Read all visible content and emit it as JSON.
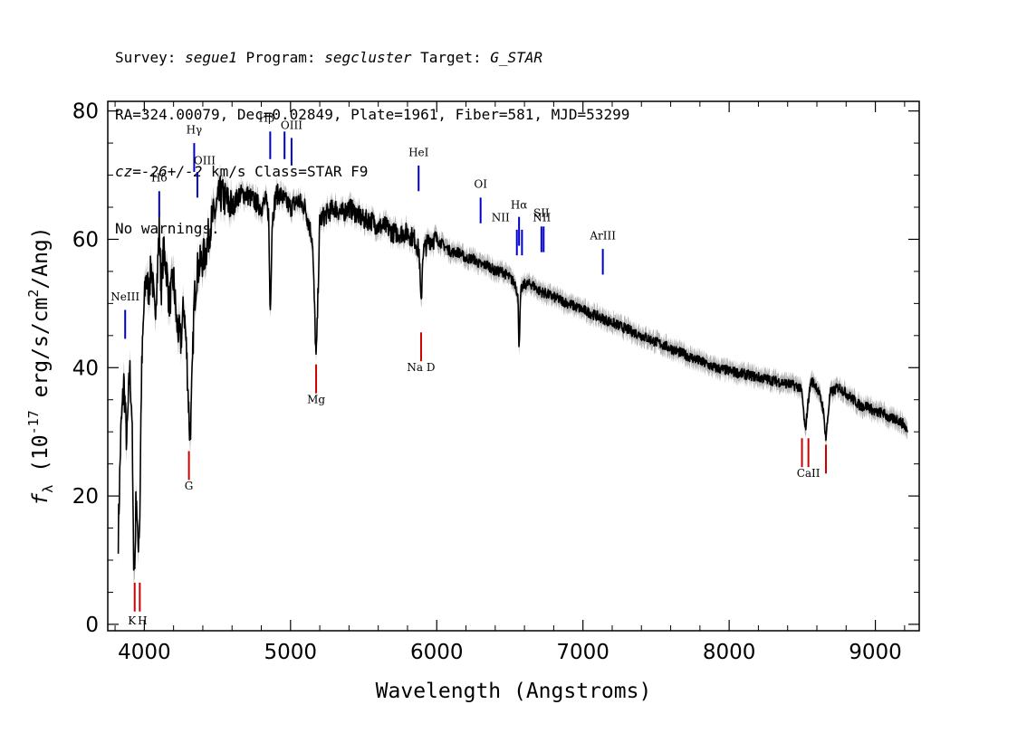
{
  "header": {
    "line1": {
      "survey_label": "Survey: ",
      "survey": "segue1",
      "program_label": " Program: ",
      "program": "segcluster",
      "target_label": " Target: ",
      "target": "G_STAR"
    },
    "line2": "RA=324.00079, Dec=0.02849, Plate=1961, Fiber=581, MJD=53299",
    "line3": {
      "cz_label": "cz=",
      "cz": "-26+/-2",
      "cz_units": " km/s Class=STAR F9"
    },
    "line4": "No warnings."
  },
  "chart_data": {
    "type": "line",
    "xlabel": "Wavelength (Angstroms)",
    "ylabel_parts": {
      "f": "f",
      "sub": "λ",
      "open": " (10",
      "exp1": "-17",
      "mid": " erg/s/cm",
      "exp2": "2",
      "close": "/Ang)"
    },
    "xlim": [
      3750,
      9300
    ],
    "ylim": [
      -1,
      81.5
    ],
    "x_ticks": [
      4000,
      5000,
      6000,
      7000,
      8000,
      9000
    ],
    "x_tick_labels": [
      "4000",
      "5000",
      "6000",
      "7000",
      "8000",
      "9000"
    ],
    "y_ticks": [
      0,
      20,
      40,
      60,
      80
    ],
    "y_tick_labels": [
      "0",
      "20",
      "40",
      "60",
      "80"
    ],
    "colors": {
      "spectrum": "#000000",
      "error_band": "#b3b3b3",
      "emission": "#0000cc",
      "absorption": "#cc0000"
    },
    "series": [
      {
        "x": [
          3822,
          3840,
          3860,
          3880,
          3900,
          3915,
          3925,
          3934,
          3945,
          3955,
          3969,
          3980,
          3995,
          4010,
          4030,
          4050,
          4070,
          4090,
          4102,
          4115,
          4130,
          4150,
          4170,
          4200,
          4220,
          4250,
          4270,
          4290,
          4300,
          4310,
          4320,
          4340,
          4360,
          4380,
          4400,
          4420,
          4450,
          4480,
          4520,
          4560,
          4600,
          4650,
          4700,
          4750,
          4800,
          4830,
          4850,
          4861,
          4875,
          4900,
          4930,
          4960,
          5000,
          5050,
          5100,
          5150,
          5168,
          5175,
          5183,
          5200,
          5250,
          5300,
          5350,
          5400,
          5450,
          5500,
          5550,
          5600,
          5650,
          5700,
          5750,
          5800,
          5850,
          5880,
          5893,
          5905,
          5950,
          6000,
          6050,
          6100,
          6150,
          6200,
          6250,
          6300,
          6350,
          6400,
          6450,
          6500,
          6540,
          6555,
          6563,
          6575,
          6600,
          6650,
          6700,
          6800,
          6900,
          7000,
          7100,
          7200,
          7300,
          7400,
          7500,
          7600,
          7700,
          7800,
          7900,
          8000,
          8100,
          8200,
          8300,
          8400,
          8480,
          8498,
          8520,
          8542,
          8560,
          8600,
          8640,
          8662,
          8690,
          8750,
          8800,
          8850,
          8900,
          8950,
          9000,
          9050,
          9100,
          9150,
          9200,
          9220
        ],
        "y": [
          14,
          30,
          38,
          28,
          40,
          33,
          12,
          8,
          22,
          12,
          16,
          38,
          48,
          54,
          52,
          56,
          48,
          55,
          62,
          52,
          58,
          56,
          50,
          54,
          47,
          44,
          50,
          42,
          36,
          30,
          32,
          50,
          55,
          56,
          57,
          58,
          62,
          64,
          67,
          66,
          65,
          67,
          67,
          66,
          65,
          66,
          64,
          48,
          63,
          67,
          67,
          66,
          65,
          66,
          65,
          60,
          46,
          41,
          47,
          63,
          64,
          65,
          64,
          65,
          64,
          63,
          63,
          62,
          62,
          61,
          61,
          61,
          60,
          58,
          49,
          58,
          60,
          60,
          59,
          58,
          58,
          57,
          57,
          56,
          56,
          55,
          55,
          54,
          53,
          51,
          43,
          52,
          53,
          53,
          52,
          51,
          50,
          49,
          48,
          47,
          46,
          45,
          44,
          43,
          42,
          41,
          40,
          39.5,
          39,
          38.5,
          38,
          37.5,
          37,
          36,
          30,
          35,
          38,
          37,
          34,
          29,
          36,
          37,
          36,
          35,
          34,
          34,
          33,
          33,
          32,
          32,
          31,
          30
        ]
      }
    ],
    "emission_lines": [
      {
        "label": "NeIII",
        "wave": 3869,
        "y_bottom": 44.5,
        "y_top": 49.0,
        "label_y": 50.5,
        "label_dx": 0
      },
      {
        "label": "Hδ",
        "wave": 4102,
        "y_bottom": 63.5,
        "y_top": 67.5,
        "label_y": 69.0,
        "label_dx": 0
      },
      {
        "label": "Hγ",
        "wave": 4341,
        "y_bottom": 70.5,
        "y_top": 75.0,
        "label_y": 76.5,
        "label_dx": 0
      },
      {
        "label": "OIII",
        "wave": 4363,
        "y_bottom": 66.5,
        "y_top": 70.5,
        "label_y": 71.7,
        "label_dx": 8
      },
      {
        "label": "Hβ",
        "wave": 4861,
        "y_bottom": 72.5,
        "y_top": 76.8,
        "label_y": 78.3,
        "label_dx": -4
      },
      {
        "label": "OIII",
        "wave": 4959,
        "y_bottom": 72.5,
        "y_top": 76.8,
        "label_y": 0,
        "label_dx": 0
      },
      {
        "label": "OIII",
        "wave": 5007,
        "y_bottom": 71.5,
        "y_top": 75.8,
        "label_y": 77.2,
        "label_dx": 0
      },
      {
        "label": "HeI",
        "wave": 5876,
        "y_bottom": 67.5,
        "y_top": 71.5,
        "label_y": 73.0,
        "label_dx": 0
      },
      {
        "label": "OI",
        "wave": 6300,
        "y_bottom": 62.5,
        "y_top": 66.5,
        "label_y": 68.0,
        "label_dx": 0
      },
      {
        "label": "NII",
        "wave": 6548,
        "y_bottom": 57.5,
        "y_top": 61.5,
        "label_y": 62.8,
        "label_dx": -18
      },
      {
        "label": "Hα",
        "wave": 6563,
        "y_bottom": 59.0,
        "y_top": 63.5,
        "label_y": 64.8,
        "label_dx": 0
      },
      {
        "label": "NII",
        "wave": 6583,
        "y_bottom": 57.5,
        "y_top": 61.5,
        "label_y": 0,
        "label_dx": 0
      },
      {
        "label": "SII",
        "wave": 6716,
        "y_bottom": 58.0,
        "y_top": 62.0,
        "label_y": 63.5,
        "label_dx": 0
      },
      {
        "label": "SII",
        "wave": 6731,
        "y_bottom": 58.0,
        "y_top": 62.0,
        "label_y": 0,
        "label_dx": 0
      },
      {
        "label": "NII",
        "wave": 6725,
        "y_bottom": 0,
        "y_top": 0,
        "label_y": 62.8,
        "label_dx": -1
      },
      {
        "label": "ArIII",
        "wave": 7136,
        "y_bottom": 54.5,
        "y_top": 58.5,
        "label_y": 60.0,
        "label_dx": 0
      }
    ],
    "absorption_lines": [
      {
        "label": "K",
        "wave": 3934,
        "y_bottom": 2.0,
        "y_top": 6.5,
        "label_y": 0.0,
        "label_dx": -3
      },
      {
        "label": "H",
        "wave": 3969,
        "y_bottom": 2.0,
        "y_top": 6.5,
        "label_y": 0.0,
        "label_dx": 3
      },
      {
        "label": "G",
        "wave": 4305,
        "y_bottom": 22.5,
        "y_top": 27.0,
        "label_y": 21.0,
        "label_dx": 0
      },
      {
        "label": "Mg",
        "wave": 5175,
        "y_bottom": 36.0,
        "y_top": 40.5,
        "label_y": 34.5,
        "label_dx": 0
      },
      {
        "label": "Na D",
        "wave": 5893,
        "y_bottom": 41.0,
        "y_top": 45.5,
        "label_y": 39.5,
        "label_dx": 0
      },
      {
        "label": "CaII",
        "wave": 8498,
        "y_bottom": 24.5,
        "y_top": 29.0,
        "label_y": 0,
        "label_dx": 0
      },
      {
        "label": "CaII",
        "wave": 8542,
        "y_bottom": 24.5,
        "y_top": 29.0,
        "label_y": 23.0,
        "label_dx": 0
      },
      {
        "label": "CaII",
        "wave": 8662,
        "y_bottom": 23.5,
        "y_top": 28.0,
        "label_y": 0,
        "label_dx": 0
      }
    ]
  }
}
